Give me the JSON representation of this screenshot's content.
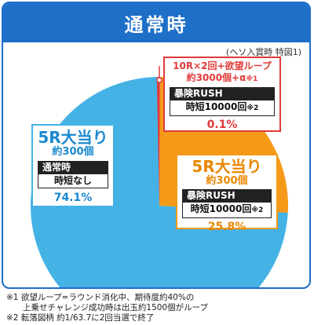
{
  "title": "通常時",
  "subtitle": "(ヘソ入賞時 特図1)",
  "chart_data": {
    "type": "pie",
    "slices": [
      {
        "label": "5R大当り",
        "sub": "約300個",
        "mode_label": "通常時",
        "time_label": "時短なし",
        "time_suffix": "",
        "pct_label": "74.1%",
        "value": 74.1,
        "color": "#45b2e6"
      },
      {
        "label": "5R大当り",
        "sub": "約300個",
        "mode_label": "暴険RUSH",
        "time_label": "時短10000回",
        "time_suffix": "※2",
        "pct_label": "25.8%",
        "value": 25.8,
        "color": "#f59a18"
      },
      {
        "label": "10R×2回+欲望ループ",
        "sub": "約3000個+α",
        "sub_suffix": "※1",
        "mode_label": "暴険RUSH",
        "time_label": "時短10000回",
        "time_suffix": "※2",
        "pct_label": "0.1%",
        "value": 0.1,
        "color": "#e03a3a"
      }
    ]
  },
  "footnotes": [
    "※1 欲望ループ=ラウンド消化中、期待度約40%の",
    "　　上乗せチャレンジ成功時は出玉約1500個がループ",
    "※2 転落図柄 約1/63.7に2回当選で終了"
  ]
}
